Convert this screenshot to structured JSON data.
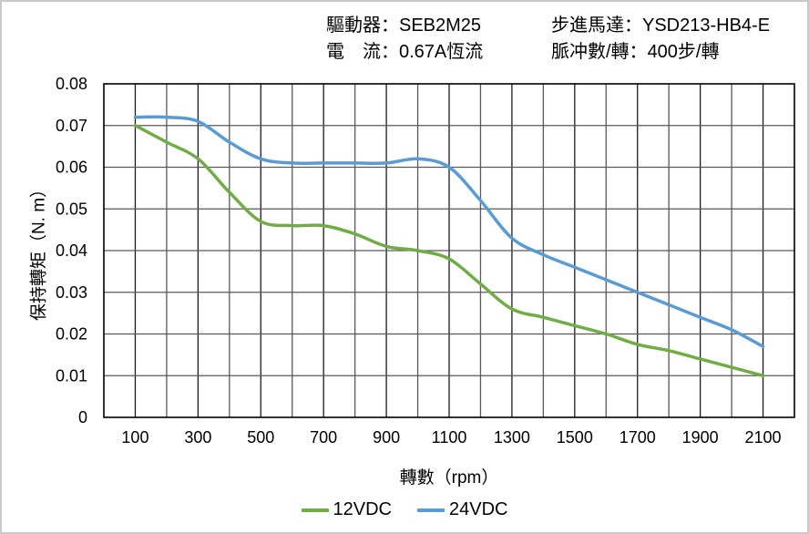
{
  "header": {
    "driver_label": "驅動器：",
    "driver_value": "SEB2M25",
    "current_label": "電　流：",
    "current_value": "0.67A恆流",
    "motor_label": "步進馬達：",
    "motor_value": "YSD213-HB4-E",
    "pulses_label": "脈冲數/轉：",
    "pulses_value": "400步/轉"
  },
  "chart_data": {
    "type": "line",
    "title": "",
    "xlabel": "轉數（rpm）",
    "ylabel": "保持轉矩（N. m）",
    "x": [
      100,
      200,
      300,
      400,
      500,
      600,
      700,
      800,
      900,
      1000,
      1100,
      1200,
      1300,
      1400,
      1500,
      1600,
      1700,
      1800,
      1900,
      2000,
      2100
    ],
    "series": [
      {
        "name": "12VDC",
        "color": "#70AD47",
        "values": [
          0.07,
          0.066,
          0.062,
          0.054,
          0.047,
          0.046,
          0.046,
          0.044,
          0.041,
          0.04,
          0.038,
          0.032,
          0.026,
          0.024,
          0.022,
          0.02,
          0.0175,
          0.016,
          0.014,
          0.012,
          0.01
        ]
      },
      {
        "name": "24VDC",
        "color": "#5B9BD5",
        "values": [
          0.072,
          0.072,
          0.071,
          0.066,
          0.062,
          0.061,
          0.061,
          0.061,
          0.061,
          0.062,
          0.06,
          0.052,
          0.043,
          0.039,
          0.036,
          0.033,
          0.03,
          0.027,
          0.024,
          0.021,
          0.017
        ]
      }
    ],
    "xlim": [
      0,
      2200
    ],
    "ylim": [
      0,
      0.08
    ],
    "x_grid_step": 100,
    "y_grid_step": 0.01,
    "x_tick_values": [
      100,
      300,
      500,
      700,
      900,
      1100,
      1300,
      1500,
      1700,
      1900,
      2100
    ],
    "x_tick_labels": [
      "100",
      "300",
      "500",
      "700",
      "900",
      "1100",
      "1300",
      "1500",
      "1700",
      "1900",
      "2100"
    ],
    "y_tick_values": [
      0,
      0.01,
      0.02,
      0.03,
      0.04,
      0.05,
      0.06,
      0.07,
      0.08
    ],
    "y_tick_labels": [
      "0",
      "0.01",
      "0.02",
      "0.03",
      "0.04",
      "0.05",
      "0.06",
      "0.07",
      "0.08"
    ],
    "grid": true,
    "legend_position": "bottom",
    "grid_minor_color": "#595959",
    "grid_major_color": "#1a1a1a",
    "axis_color": "#000000",
    "line_width": 3.5
  }
}
